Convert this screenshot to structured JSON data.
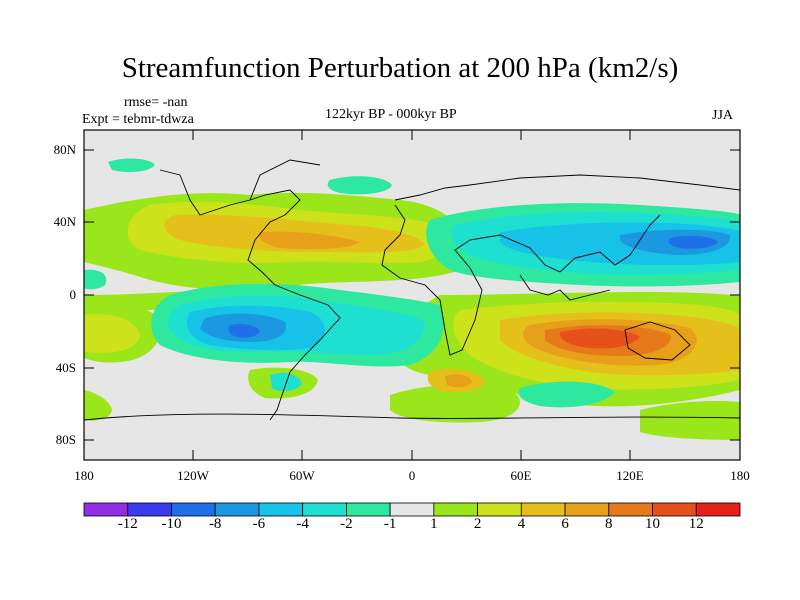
{
  "title": "Streamfunction Perturbation at 200 hPa (km2/s)",
  "left_string_1": "rmse= -nan",
  "left_string_2": "Expt = tebmr-tdwza",
  "center_string": "122kyr BP - 000kyr BP",
  "right_string": "JJA",
  "y_ticks": [
    "80N",
    "40N",
    "0",
    "40S",
    "80S"
  ],
  "x_ticks": [
    "180",
    "120W",
    "60W",
    "0",
    "60E",
    "120E",
    "180"
  ],
  "colorbar": {
    "colors": [
      "#8f2fe6",
      "#3a3aee",
      "#1f6fe8",
      "#1b98e0",
      "#17c2e8",
      "#1de0d0",
      "#2ee8a0",
      "#e6e6e6",
      "#9be61a",
      "#cde21a",
      "#e6c01a",
      "#e6a01a",
      "#e67a1a",
      "#e6501a",
      "#e6201a"
    ],
    "labels": [
      "-12",
      "-10",
      "-8",
      "-6",
      "-4",
      "-2",
      "-1",
      "1",
      "2",
      "4",
      "6",
      "8",
      "10",
      "12"
    ]
  }
}
